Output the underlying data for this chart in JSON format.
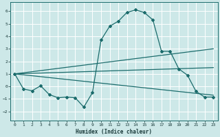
{
  "xlabel": "Humidex (Indice chaleur)",
  "xlim": [
    -0.5,
    23.5
  ],
  "ylim": [
    -2.7,
    6.7
  ],
  "yticks": [
    -2,
    -1,
    0,
    1,
    2,
    3,
    4,
    5,
    6
  ],
  "xticks": [
    0,
    1,
    2,
    3,
    4,
    5,
    6,
    7,
    8,
    9,
    10,
    11,
    12,
    13,
    14,
    15,
    16,
    17,
    18,
    19,
    20,
    21,
    22,
    23
  ],
  "bg_color": "#cde8e8",
  "line_color": "#1a6b6b",
  "grid_color": "#ffffff",
  "lines": [
    {
      "x": [
        0,
        1,
        2,
        3,
        4,
        5,
        6,
        7,
        8,
        9,
        10,
        11,
        12,
        13,
        14,
        15,
        16,
        17,
        18,
        19,
        20,
        21,
        22,
        23
      ],
      "y": [
        1.0,
        -0.2,
        -0.35,
        0.05,
        -0.65,
        -0.9,
        -0.85,
        -0.9,
        -1.65,
        -0.5,
        3.7,
        4.8,
        5.2,
        5.9,
        6.1,
        5.9,
        5.3,
        2.8,
        2.8,
        1.4,
        0.9,
        -0.4,
        -0.85,
        -0.85
      ],
      "marker": "D",
      "markersize": 2.0,
      "linewidth": 0.9
    },
    {
      "x": [
        0,
        23
      ],
      "y": [
        1.0,
        3.0
      ],
      "marker": null,
      "linewidth": 0.9
    },
    {
      "x": [
        0,
        23
      ],
      "y": [
        1.0,
        1.5
      ],
      "marker": null,
      "linewidth": 0.9
    },
    {
      "x": [
        0,
        23
      ],
      "y": [
        1.0,
        -0.7
      ],
      "marker": null,
      "linewidth": 0.9
    }
  ]
}
